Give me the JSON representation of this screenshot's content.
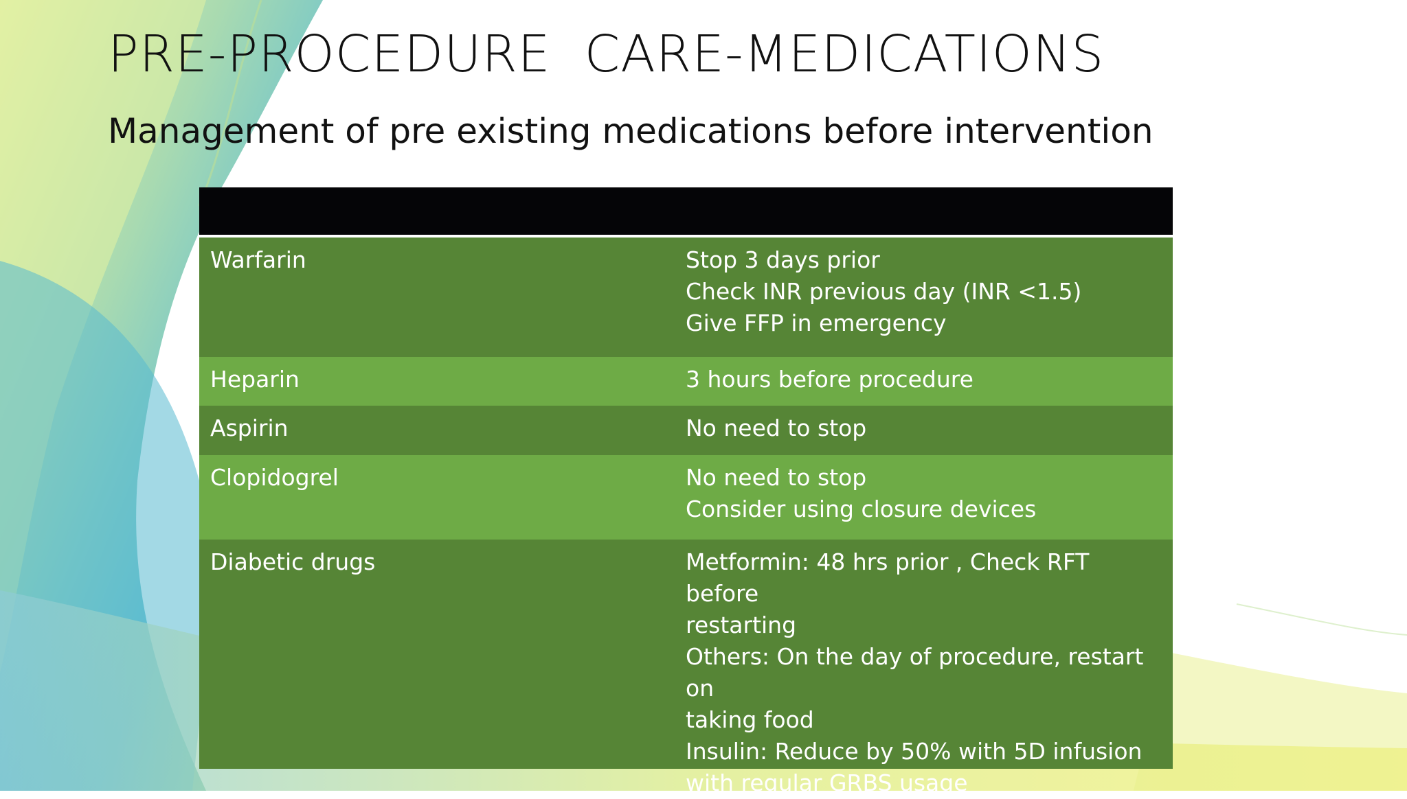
{
  "slide": {
    "title": "PRE-PROCEDURE  CARE-MEDICATIONS",
    "subtitle": "Management of pre existing medications before intervention"
  },
  "table": {
    "header": [
      "",
      ""
    ],
    "rows": [
      {
        "name": "Warfarin",
        "instructions": [
          "Stop 3 days prior",
          "Check INR previous day (INR <1.5)",
          "Give FFP in emergency"
        ]
      },
      {
        "name": "Heparin",
        "instructions": [
          "3 hours before procedure"
        ]
      },
      {
        "name": "Aspirin",
        "instructions": [
          "No need to stop"
        ]
      },
      {
        "name": "Clopidogrel",
        "instructions": [
          "No need to stop",
          "Consider using closure devices"
        ]
      },
      {
        "name": "Diabetic drugs",
        "instructions": [
          "Metformin: 48 hrs prior , Check RFT before",
          "restarting",
          "Others: On the day of procedure, restart on",
          "taking food",
          "Insulin: Reduce by 50% with 5D infusion",
          "with regular GRBS usage"
        ]
      }
    ]
  },
  "colors": {
    "header": "#050507",
    "row_dark": "#568536",
    "row_light": "#6eab46",
    "text": "#ffffff"
  }
}
